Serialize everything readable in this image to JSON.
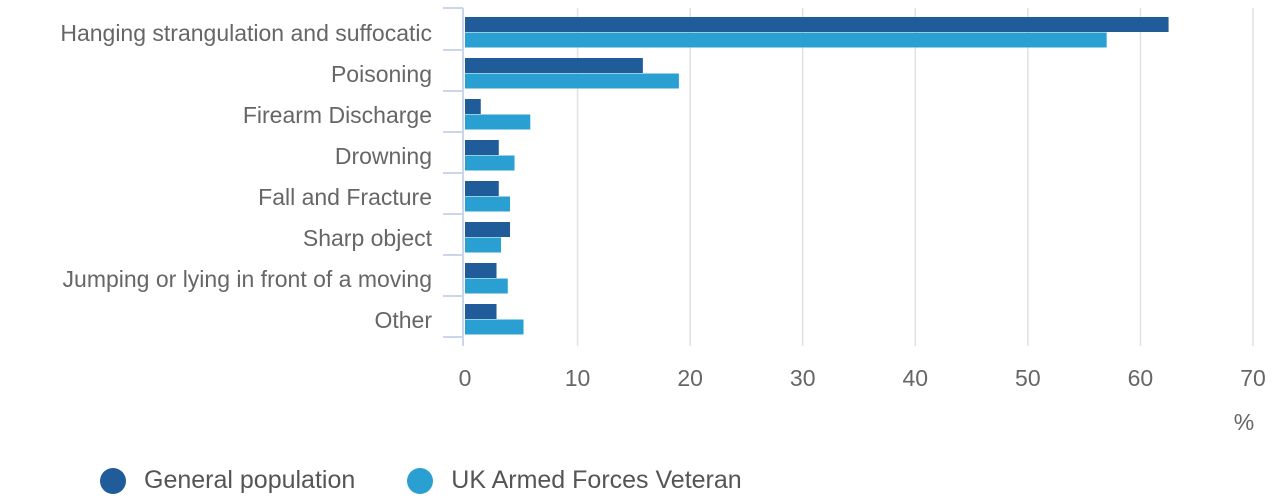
{
  "chart_data": {
    "type": "bar",
    "orientation": "horizontal",
    "categories": [
      "Hanging strangulation and suffocatic",
      "Poisoning",
      "Firearm Discharge",
      "Drowning",
      "Fall and Fracture",
      "Sharp object",
      "Jumping or lying in front of a moving",
      "Other"
    ],
    "series": [
      {
        "name": "General population",
        "color": "#1f5c99",
        "values": [
          62.5,
          15.8,
          1.4,
          3.0,
          3.0,
          4.0,
          2.8,
          2.8
        ]
      },
      {
        "name": "UK Armed Forces Veteran",
        "color": "#2aa0d2",
        "values": [
          57.0,
          19.0,
          5.8,
          4.4,
          4.0,
          3.2,
          3.8,
          5.2
        ]
      }
    ],
    "xlim": [
      0,
      70
    ],
    "xticks": [
      "0",
      "10",
      "20",
      "30",
      "40",
      "50",
      "60",
      "70"
    ],
    "xlabel": "%",
    "grid": true,
    "legend_position": "bottom-left"
  }
}
